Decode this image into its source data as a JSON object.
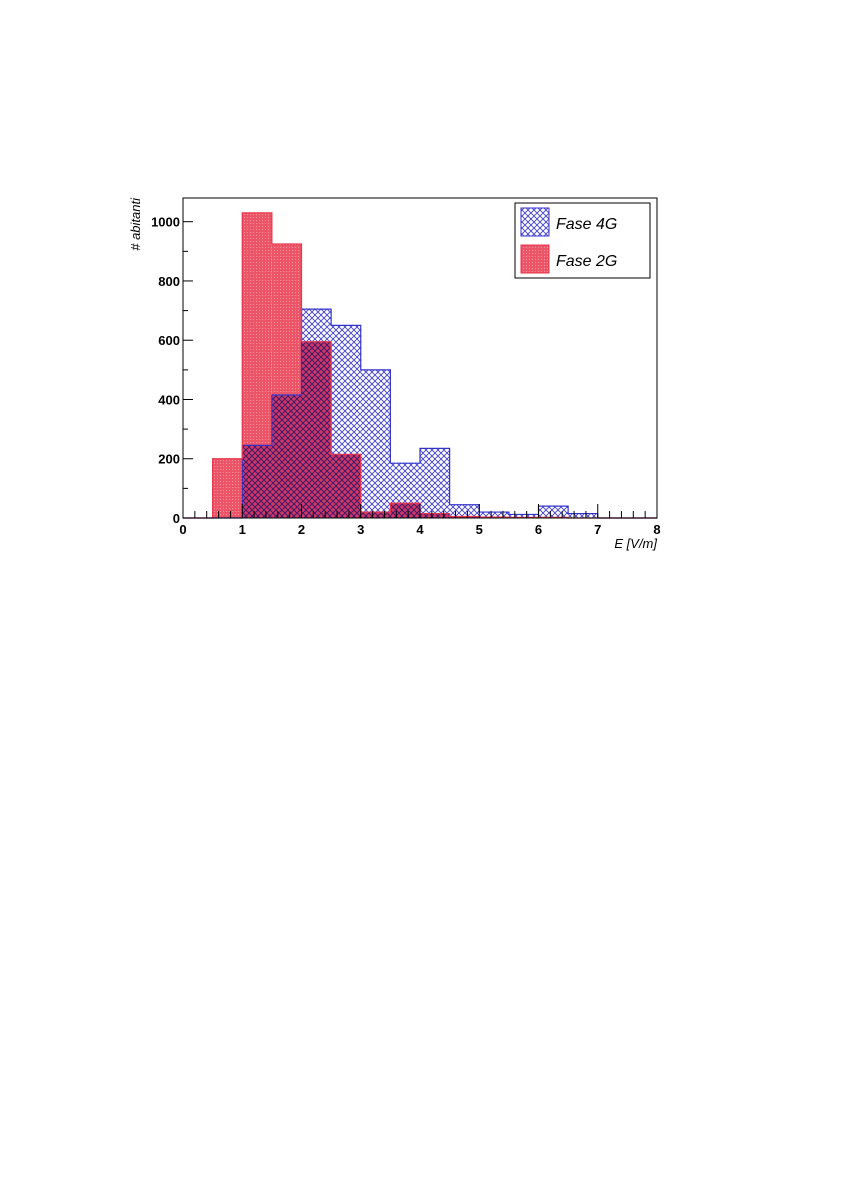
{
  "chart_data": {
    "type": "histogram",
    "xlabel": "E [V/m]",
    "ylabel": "# abitanti",
    "xlim": [
      0,
      8
    ],
    "ylim": [
      0,
      1080
    ],
    "x_ticks": [
      0,
      1,
      2,
      3,
      4,
      5,
      6,
      7,
      8
    ],
    "y_ticks": [
      0,
      200,
      400,
      600,
      800,
      1000
    ],
    "bin_edges": [
      0,
      0.5,
      1,
      1.5,
      2,
      2.5,
      3,
      3.5,
      4,
      4.5,
      5,
      5.5,
      6,
      6.5,
      7,
      7.5,
      8
    ],
    "grid": false,
    "legend_position": "top-right",
    "series": [
      {
        "name": "Fase 4G",
        "values": [
          0,
          0,
          245,
          415,
          705,
          650,
          500,
          185,
          235,
          45,
          20,
          12,
          40,
          15,
          0,
          0
        ],
        "color": "#3333cc",
        "fill": "crosshatch"
      },
      {
        "name": "Fase 2G",
        "values": [
          0,
          200,
          1030,
          925,
          595,
          215,
          20,
          50,
          15,
          5,
          3,
          2,
          2,
          0,
          0,
          0
        ],
        "color": "#e8364c",
        "fill": "solid-dotted"
      }
    ]
  }
}
